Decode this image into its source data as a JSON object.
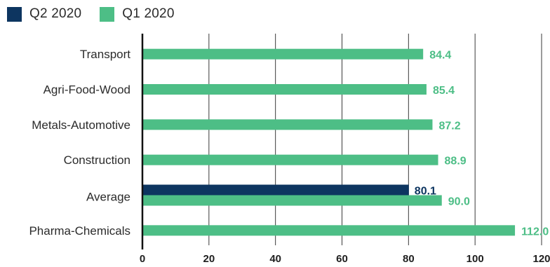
{
  "legend": [
    {
      "label": "Q2 2020",
      "color": "#0d3560"
    },
    {
      "label": "Q1 2020",
      "color": "#4dbe86"
    }
  ],
  "chart_data": {
    "type": "bar",
    "orientation": "horizontal",
    "categories": [
      "Transport",
      "Agri-Food-Wood",
      "Metals-Automotive",
      "Construction",
      "Average",
      "Pharma-Chemicals"
    ],
    "series": [
      {
        "name": "Q2 2020",
        "color": "#0d3560",
        "values": [
          null,
          null,
          null,
          null,
          80.1,
          null
        ]
      },
      {
        "name": "Q1 2020",
        "color": "#4dbe86",
        "values": [
          84.4,
          85.4,
          87.2,
          88.9,
          90.0,
          112.0
        ]
      }
    ],
    "value_labels": {
      "Q2 2020": [
        null,
        null,
        null,
        null,
        "80.1",
        null
      ],
      "Q1 2020": [
        "84.4",
        "85.4",
        "87.2",
        "88.9",
        "90.0",
        "112.0"
      ]
    },
    "xlim": [
      0,
      120
    ],
    "xticks": [
      "0",
      "20",
      "40",
      "60",
      "80",
      "100",
      "120"
    ],
    "grid": "vertical",
    "legend_position": "top-left"
  }
}
